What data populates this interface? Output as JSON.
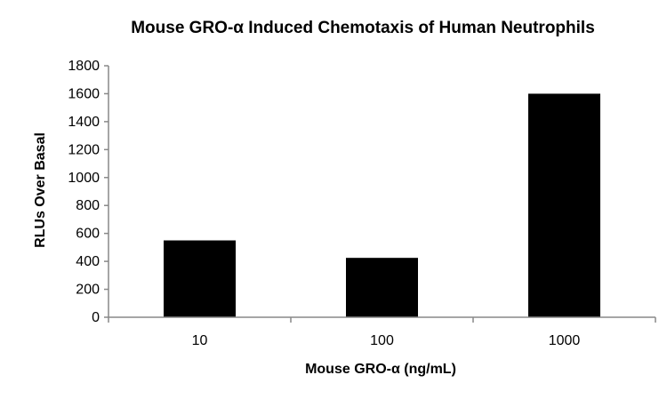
{
  "chart_data": {
    "type": "bar",
    "title": "Mouse GRO-α Induced Chemotaxis of Human Neutrophils",
    "xlabel": "Mouse GRO-α (ng/mL)",
    "ylabel": "RLUs Over Basal",
    "categories": [
      "10",
      "100",
      "1000"
    ],
    "series": [
      {
        "values": [
          550,
          425,
          1600
        ]
      }
    ],
    "ylim": [
      0,
      1800
    ],
    "yticks": [
      0,
      200,
      400,
      600,
      800,
      1000,
      1200,
      1400,
      1600,
      1800
    ],
    "grid": false,
    "legend": "none",
    "bar_color": "#000000",
    "axis_color": "#888888"
  }
}
